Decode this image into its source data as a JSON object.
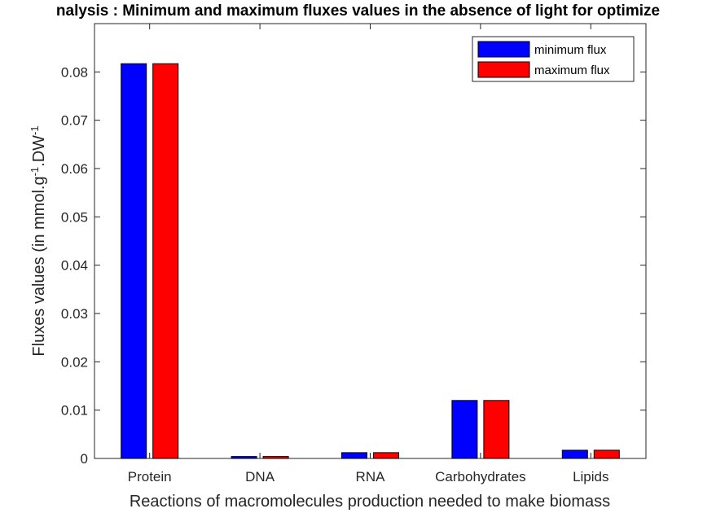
{
  "chart_data": {
    "type": "bar",
    "title": "nalysis : Minimum and maximum fluxes values in the absence of light for optimize",
    "xlabel": "Reactions of macromolecules production needed to make biomass",
    "ylabel": {
      "base": "Fluxes values (in mmol.g",
      "sup1": "-1",
      "mid": ".DW",
      "sup2": "-1"
    },
    "categories": [
      "Protein",
      "DNA",
      "RNA",
      "Carbohydrates",
      "Lipids"
    ],
    "series": [
      {
        "name": "minimum flux",
        "color": "#0000ff",
        "values": [
          0.0817,
          0.0004,
          0.0012,
          0.012,
          0.0017
        ]
      },
      {
        "name": "maximum flux",
        "color": "#ff0000",
        "values": [
          0.0817,
          0.0004,
          0.0012,
          0.012,
          0.0017
        ]
      }
    ],
    "ylim": [
      0,
      0.09
    ],
    "yticks": [
      "0",
      "0.01",
      "0.02",
      "0.03",
      "0.04",
      "0.05",
      "0.06",
      "0.07",
      "0.08"
    ],
    "ytick_values": [
      0,
      0.01,
      0.02,
      0.03,
      0.04,
      0.05,
      0.06,
      0.07,
      0.08
    ],
    "grid": false,
    "legend_position": "top-right"
  }
}
